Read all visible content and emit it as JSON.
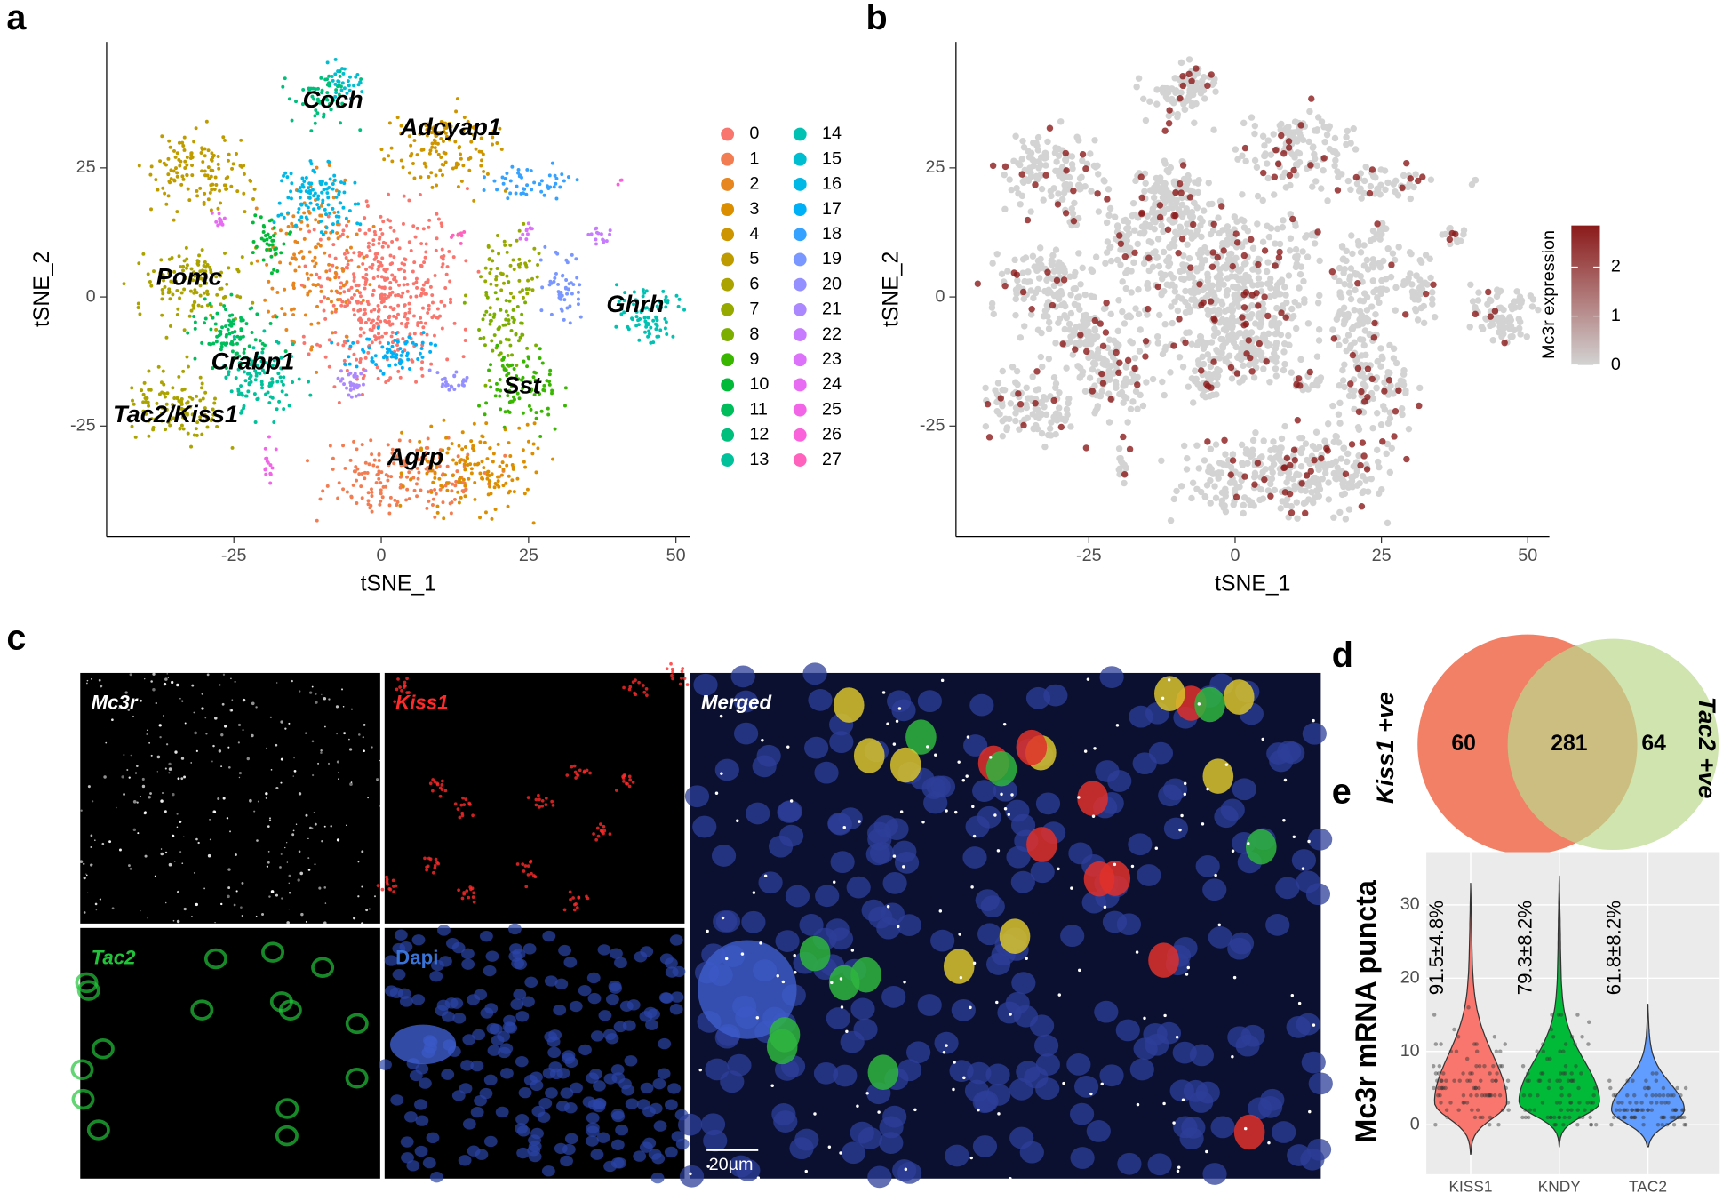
{
  "panel_labels": [
    "a",
    "b",
    "c",
    "d",
    "e"
  ],
  "chart_data": [
    {
      "type": "scatter",
      "xlabel": "tSNE_1",
      "ylabel": "tSNE_2",
      "xlim": [
        -46.6,
        52.4
      ],
      "ylim": [
        -46.4,
        49.4
      ],
      "xticks": [
        -25,
        0,
        25,
        50
      ],
      "yticks": [
        -25,
        0,
        25
      ],
      "annotations": [
        {
          "text": "Coch",
          "x": -8.2,
          "y": 37.9
        },
        {
          "text": "Adcyap1",
          "x": 11.8,
          "y": 32.6
        },
        {
          "text": "Pomc",
          "x": -32.6,
          "y": 3.6
        },
        {
          "text": "Ghrh",
          "x": 43.1,
          "y": -1.7
        },
        {
          "text": "Crabp1",
          "x": -21.8,
          "y": -12.8
        },
        {
          "text": "Sst",
          "x": 23.9,
          "y": -17.4
        },
        {
          "text": "Tac2/Kiss1",
          "x": -34.9,
          "y": -23
        },
        {
          "text": "Agrp",
          "x": 5.8,
          "y": -31.3
        }
      ],
      "clusters": {
        "names": [
          "0",
          "1",
          "2",
          "3",
          "4",
          "5",
          "6",
          "7",
          "8",
          "9",
          "10",
          "11",
          "12",
          "13",
          "14",
          "15",
          "16",
          "17",
          "18",
          "19",
          "20",
          "21",
          "22",
          "23",
          "24",
          "25",
          "26",
          "27"
        ],
        "colors": [
          "#F8766D",
          "#F27D52",
          "#E7851E",
          "#DB8E00",
          "#CD9600",
          "#BE9C00",
          "#ABA300",
          "#96A900",
          "#7CAE00",
          "#39B600",
          "#00BA38",
          "#00BD5C",
          "#00BF7D",
          "#00C19A",
          "#00C1B2",
          "#00BDD0",
          "#00B8E5",
          "#00B0F6",
          "#35A2FF",
          "#7997FF",
          "#9590FF",
          "#AC88FF",
          "#C77CFF",
          "#DC71FA",
          "#E76BF3",
          "#F265E7",
          "#FA62DB",
          "#FF62BC"
        ]
      }
    },
    {
      "type": "scatter",
      "xlabel": "tSNE_1",
      "ylabel": "tSNE_2",
      "xlim": [
        -47.7,
        53.7
      ],
      "ylim": [
        -46.4,
        49.4
      ],
      "xticks": [
        -25,
        0,
        25,
        50
      ],
      "yticks": [
        -25,
        0,
        25
      ],
      "colorbar": {
        "title": "Mc3r expression",
        "lim": [
          0,
          2.85
        ],
        "ticks": [
          0,
          1,
          2
        ],
        "colors": [
          "#D3D3D3",
          "#8B1A1A"
        ]
      }
    },
    {
      "type": "venn",
      "sets": [
        "Kiss1 +ve",
        "Tac2 +ve"
      ],
      "colors": [
        "#F28066",
        "#BBD98C"
      ],
      "values": [
        60,
        281,
        64
      ]
    },
    {
      "type": "violin",
      "ylabel": "Mc3r mRNA puncta",
      "categories": [
        "KISS1",
        "KNDY",
        "TAC2"
      ],
      "colors": [
        "#F8766D",
        "#00BA38",
        "#619CFF"
      ],
      "annotations": [
        "91.5±4.8%",
        "79.3±8.2%",
        "61.8±8.2%"
      ],
      "ylim": [
        -6.75,
        37.2
      ],
      "yticks": [
        0,
        10,
        20,
        30
      ]
    }
  ],
  "microscopy": {
    "panels": [
      {
        "label": "Mc3r",
        "color": "#FFFFFF"
      },
      {
        "label": "Kiss1",
        "color": "#FF2A2A"
      },
      {
        "label": "Tac2",
        "color": "#22C33A"
      },
      {
        "label": "Dapi",
        "color": "#3A73D8"
      },
      {
        "label": "Merged",
        "color": "#FFFFFF"
      }
    ],
    "scale_bar": "20µm"
  }
}
